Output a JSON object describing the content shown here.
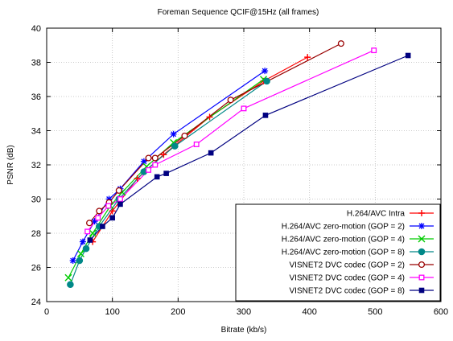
{
  "chart_data": {
    "type": "line",
    "title": "Foreman Sequence QCIF@15Hz (all frames)",
    "xlabel": "Bitrate (kb/s)",
    "ylabel": "PSNR (dB)",
    "xlim": [
      0,
      600
    ],
    "ylim": [
      24,
      40
    ],
    "xticks": [
      "0",
      "100",
      "200",
      "300",
      "400",
      "500",
      "600"
    ],
    "yticks": [
      "24",
      "26",
      "28",
      "30",
      "32",
      "34",
      "36",
      "38",
      "40"
    ],
    "grid": true,
    "legend_position": "bottom-right",
    "series": [
      {
        "name": "H.264/AVC Intra",
        "color": "#ff0000",
        "marker": "plus",
        "points": [
          [
            70,
            27.5
          ],
          [
            100,
            29.3
          ],
          [
            138,
            31.2
          ],
          [
            178,
            32.6
          ],
          [
            248,
            34.8
          ],
          [
            330,
            36.9
          ],
          [
            397,
            38.3
          ]
        ]
      },
      {
        "name": "H.264/AVC zero-motion (GOP = 2)",
        "color": "#0000ff",
        "marker": "star",
        "points": [
          [
            40,
            26.4
          ],
          [
            55,
            27.5
          ],
          [
            73,
            28.7
          ],
          [
            95,
            30.0
          ],
          [
            112,
            30.6
          ],
          [
            148,
            32.2
          ],
          [
            193,
            33.8
          ],
          [
            332,
            37.5
          ]
        ]
      },
      {
        "name": "H.264/AVC zero-motion (GOP = 4)",
        "color": "#00cc00",
        "marker": "x",
        "points": [
          [
            33,
            25.4
          ],
          [
            52,
            26.8
          ],
          [
            70,
            28.0
          ],
          [
            97,
            29.6
          ],
          [
            115,
            30.4
          ],
          [
            152,
            31.9
          ],
          [
            193,
            33.3
          ],
          [
            330,
            37.0
          ]
        ]
      },
      {
        "name": "H.264/AVC zero-motion (GOP = 8)",
        "color": "#008888",
        "marker": "circle",
        "points": [
          [
            36,
            25.0
          ],
          [
            50,
            26.4
          ],
          [
            60,
            27.1
          ],
          [
            80,
            28.4
          ],
          [
            110,
            30.0
          ],
          [
            148,
            31.6
          ],
          [
            195,
            33.1
          ],
          [
            335,
            36.9
          ]
        ]
      },
      {
        "name": "VISNET2 DVC codec (GOP = 2)",
        "color": "#990000",
        "marker": "circle-open",
        "points": [
          [
            65,
            28.6
          ],
          [
            80,
            29.3
          ],
          [
            95,
            29.8
          ],
          [
            110,
            30.5
          ],
          [
            155,
            32.4
          ],
          [
            165,
            32.4
          ],
          [
            210,
            33.7
          ],
          [
            280,
            35.8
          ],
          [
            448,
            39.1
          ]
        ]
      },
      {
        "name": "VISNET2 DVC codec (GOP = 4)",
        "color": "#ff00ff",
        "marker": "square-open",
        "points": [
          [
            62,
            28.1
          ],
          [
            78,
            28.9
          ],
          [
            94,
            29.6
          ],
          [
            112,
            30.0
          ],
          [
            155,
            31.7
          ],
          [
            165,
            32.0
          ],
          [
            228,
            33.2
          ],
          [
            300,
            35.3
          ],
          [
            498,
            38.7
          ]
        ]
      },
      {
        "name": "VISNET2 DVC codec (GOP = 8)",
        "color": "#000080",
        "marker": "square",
        "points": [
          [
            66,
            27.6
          ],
          [
            85,
            28.4
          ],
          [
            100,
            28.9
          ],
          [
            112,
            29.7
          ],
          [
            168,
            31.3
          ],
          [
            182,
            31.5
          ],
          [
            250,
            32.7
          ],
          [
            333,
            34.9
          ],
          [
            550,
            38.4
          ]
        ]
      }
    ]
  }
}
